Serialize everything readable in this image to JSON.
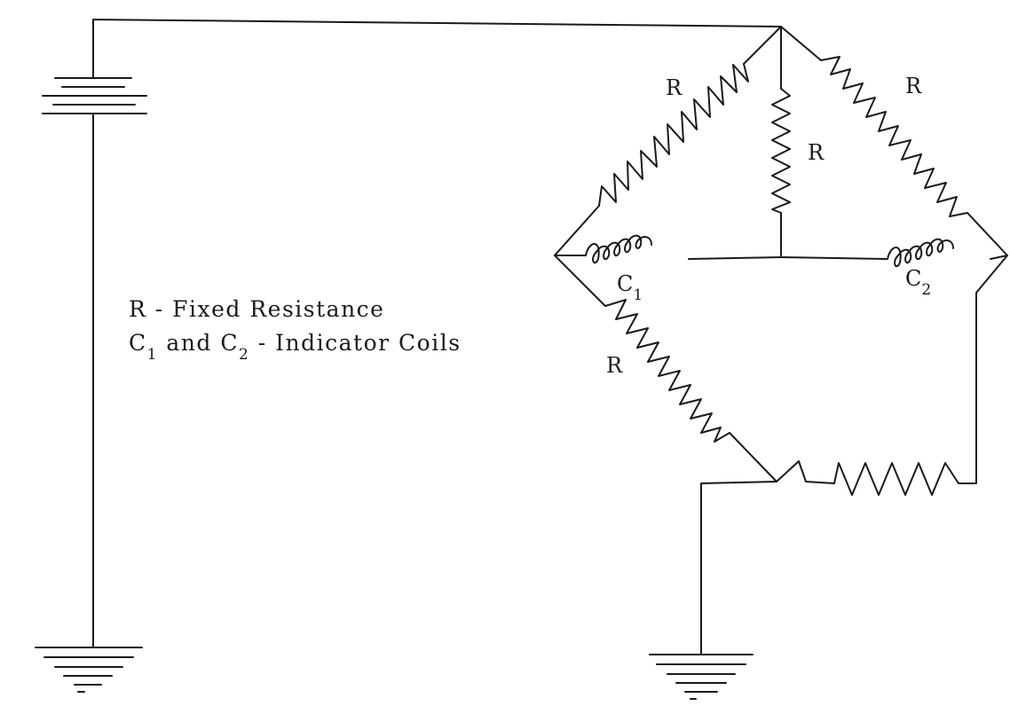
{
  "labels": {
    "r_top_left": "R",
    "r_top_right": "R",
    "r_center": "R",
    "r_lower_left": "R",
    "coil1_main": "C",
    "coil1_sub": "1",
    "coil2_main": "C",
    "coil2_sub": "2"
  },
  "legend": {
    "line1": "R - Fixed Resistance",
    "line2_c1": "C",
    "line2_c1_sub": "1",
    "line2_mid": " and C",
    "line2_c2_sub": "2",
    "line2_end": " - Indicator Coils"
  }
}
